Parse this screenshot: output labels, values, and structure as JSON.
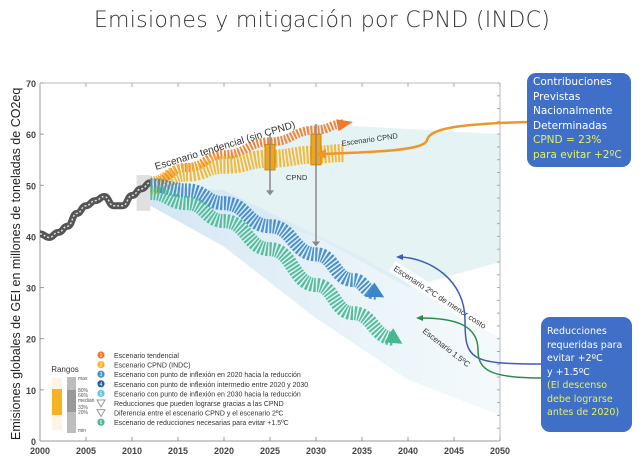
{
  "title": "Emisiones y mitigación por CPND (INDC)",
  "callouts": {
    "cpnd": {
      "lines": [
        "Contribuciones",
        "Previstas",
        "Nacionalmente",
        "Determinadas"
      ],
      "highlight": [
        "CPND = 23%",
        "para evitar +2ºC"
      ],
      "color": "#3f6fc6",
      "highlight_color": "#e6f25a"
    },
    "reducciones": {
      "lines": [
        "Reducciones",
        "requeridas para",
        "evitar +2ºC",
        "y +1.5ºC"
      ],
      "highlight": [
        "(El descenso",
        "debe lograrse",
        "antes de 2020)"
      ]
    }
  },
  "chart_data": {
    "type": "line",
    "ylabel": "Emisiones globales de GEI en millones de toneladas de CO2eq",
    "xlim": [
      2000,
      2050
    ],
    "ylim": [
      0,
      70
    ],
    "xticks": [
      2000,
      2005,
      2010,
      2015,
      2020,
      2025,
      2030,
      2035,
      2040,
      2045,
      2050
    ],
    "yticks": [
      0,
      10,
      20,
      30,
      40,
      50,
      60,
      70
    ],
    "grid": false,
    "series": [
      {
        "key": "historico",
        "color": "#6b6b6b",
        "x": [
          2000,
          2001,
          2002,
          2003,
          2004,
          2005,
          2006,
          2007,
          2008,
          2009,
          2010,
          2011,
          2012
        ],
        "y": [
          40.5,
          39.8,
          40.8,
          42,
          44.5,
          46,
          47,
          47.8,
          46,
          46,
          48,
          49.3,
          50.5
        ]
      },
      {
        "key": "tendencial",
        "label": "Escenario tendencial (sin CPND)",
        "color": "#ee7a2a",
        "x": [
          2012,
          2016,
          2020,
          2025,
          2030,
          2033
        ],
        "y": [
          50.5,
          53.5,
          56,
          58.5,
          60.8,
          62
        ]
      },
      {
        "key": "cpnd",
        "label": "Escenario CPND",
        "color": "#f5b324",
        "x": [
          2012,
          2016,
          2020,
          2025,
          2030,
          2033
        ],
        "y": [
          50,
          52.5,
          54,
          55.2,
          56,
          56.3
        ]
      },
      {
        "key": "dos_grados",
        "label": "Escenario 2ºC de menor costo",
        "color": "#3a86c8",
        "x": [
          2012,
          2016,
          2020,
          2025,
          2030,
          2034,
          2036.5
        ],
        "y": [
          50,
          49,
          46.5,
          42,
          36.5,
          31.5,
          29
        ]
      },
      {
        "key": "uno_cinco",
        "label": "Escenario 1.5ºC",
        "color": "#45b890",
        "x": [
          2012,
          2016,
          2020,
          2025,
          2030,
          2034,
          2038.5
        ],
        "y": [
          48.5,
          46.5,
          43,
          37.5,
          30.5,
          25,
          20
        ]
      }
    ],
    "annotations": {
      "cpnd_label": "CPND"
    },
    "legend": {
      "placement": "bottom-left",
      "title": "Rangos",
      "range_labels": [
        "max",
        "80%",
        "66%",
        "median",
        "33%",
        "20%",
        "min"
      ],
      "items": [
        {
          "marker": "1",
          "color": "#ee7a2a",
          "label": "Escenario tendencial"
        },
        {
          "marker": "2",
          "color": "#f5b324",
          "label": "Escenario CPND (INDC)"
        },
        {
          "marker": "3",
          "color": "#3a96d4",
          "label": "Escenario con punto de inflexión en 2020 hacia la reducción"
        },
        {
          "marker": "4",
          "color": "#2a5ea8",
          "label": "Escenario con punto de inflexión intermedio entre 2020 y 2030"
        },
        {
          "marker": "5",
          "color": "#62c3dc",
          "label": "Escenario con punto de inflexión en 2030 hacia la reducción"
        },
        {
          "marker": "arrow",
          "color": "#9a9a9a",
          "label": "Reducciones que pueden lograrse gracias a las CPND"
        },
        {
          "marker": "arrow",
          "color": "#9a9a9a",
          "label": "Diferencia entre el escenario CPND y el escenario  2ºC"
        },
        {
          "marker": "6",
          "color": "#45b890",
          "label": "Escenario de reducciones necesarias para  evitar +1.5ºC"
        }
      ]
    }
  }
}
